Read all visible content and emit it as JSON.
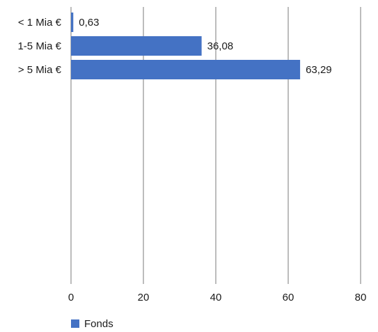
{
  "chart_data": {
    "type": "bar",
    "orientation": "horizontal",
    "categories": [
      "< 1 Mia €",
      "1-5 Mia €",
      "> 5 Mia €"
    ],
    "series": [
      {
        "name": "Fonds",
        "values": [
          0.63,
          36.08,
          63.29
        ],
        "value_labels": [
          "0,63",
          "36,08",
          "63,29"
        ],
        "color": "#4472C4"
      }
    ],
    "xlim": [
      0,
      80
    ],
    "x_ticks": [
      0,
      20,
      40,
      60,
      80
    ],
    "x_tick_labels": [
      "0",
      "20",
      "40",
      "60",
      "80"
    ],
    "grid": "vertical",
    "legend": "bottom-left",
    "title": "",
    "xlabel": "",
    "ylabel": ""
  },
  "colors": {
    "bar": "#4472C4",
    "grid": "#a6a6a6",
    "text": "#1a1a1a"
  }
}
